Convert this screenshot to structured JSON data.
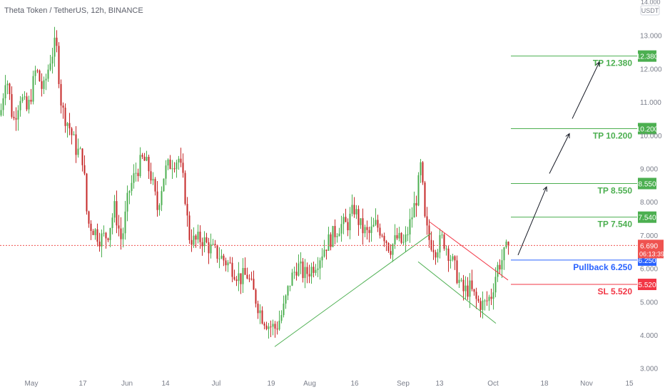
{
  "header": {
    "symbol": "Theta Token / TetherUS",
    "interval": "12h",
    "exchange": "BINANCE"
  },
  "price_axis": {
    "currency": "USDT",
    "top_label": "14.000",
    "ticks": [
      "13.000",
      "12.000",
      "11.000",
      "10.000",
      "9.000",
      "8.000",
      "7.000",
      "6.000",
      "5.000",
      "4.000",
      "3.000"
    ]
  },
  "time_axis": {
    "ticks": [
      "May",
      "17",
      "Jun",
      "14",
      "Jul",
      "19",
      "Aug",
      "16",
      "Sep",
      "13",
      "Oct",
      "18",
      "Nov",
      "15"
    ]
  },
  "current_price": {
    "value": "6.690",
    "countdown": "06:13:39",
    "color": "#ef5350"
  },
  "levels": [
    {
      "name": "tp4",
      "label": "TP 12.380",
      "value": "12.380",
      "color": "#4caf50"
    },
    {
      "name": "tp3",
      "label": "TP 10.200",
      "value": "10.200",
      "color": "#4caf50"
    },
    {
      "name": "tp2",
      "label": "TP 8.550",
      "value": "8.550",
      "color": "#4caf50"
    },
    {
      "name": "tp1",
      "label": "TP 7.540",
      "value": "7.540",
      "color": "#4caf50"
    },
    {
      "name": "pullback",
      "label": "Pullback 6.250",
      "value": "6.250",
      "color": "#2962ff"
    },
    {
      "name": "sl",
      "label": "SL 5.520",
      "value": "5.520",
      "color": "#f23645"
    }
  ],
  "colors": {
    "up": "#26a69a",
    "up_candle": "#4caf50",
    "down_candle": "#c62828",
    "trendline_green": "#4caf50",
    "trendline_red": "#f23645",
    "grid_text": "#7a7e8a"
  },
  "chart_data": {
    "type": "candlestick",
    "title": "Theta Token / TetherUS, 12h, BINANCE",
    "y_scale": "linear",
    "ylim": [
      3.0,
      14.0
    ],
    "x_ticks": [
      "May",
      "17",
      "Jun",
      "14",
      "Jul",
      "19",
      "Aug",
      "16",
      "Sep",
      "13",
      "Oct",
      "18",
      "Nov",
      "15"
    ],
    "price_path_approx": [
      {
        "x": "early May",
        "close": 10.6
      },
      {
        "x": "mid May",
        "close": 12.2
      },
      {
        "x": "17 May",
        "close": 9.6
      },
      {
        "x": "late May",
        "close": 7.3
      },
      {
        "x": "Jun",
        "close": 8.8
      },
      {
        "x": "mid Jun",
        "close": 9.4
      },
      {
        "x": "late Jun",
        "close": 6.7
      },
      {
        "x": "Jul",
        "close": 6.6
      },
      {
        "x": "19 Jul",
        "close": 3.7
      },
      {
        "x": "Aug",
        "close": 6.6
      },
      {
        "x": "16 Aug",
        "close": 7.5
      },
      {
        "x": "Sep",
        "close": 9.5
      },
      {
        "x": "13 Sep",
        "close": 6.0
      },
      {
        "x": "late Sep",
        "close": 4.8
      },
      {
        "x": "Oct",
        "close": 6.69
      }
    ],
    "horizontal_levels": [
      12.38,
      10.2,
      8.55,
      7.54,
      6.25,
      5.52
    ],
    "last_price": 6.69
  }
}
